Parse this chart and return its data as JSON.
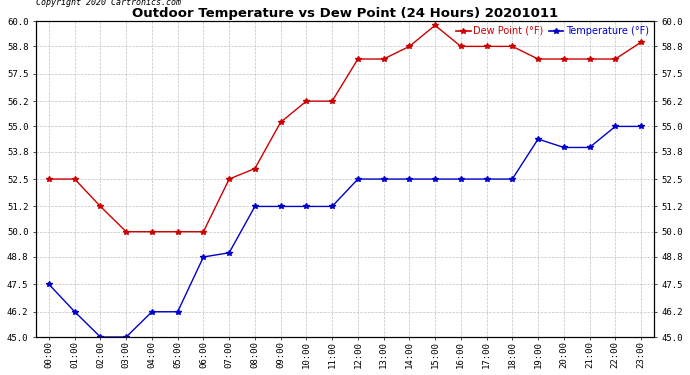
{
  "title": "Outdoor Temperature vs Dew Point (24 Hours) 20201011",
  "copyright": "Copyright 2020 Cartronics.com",
  "hours": [
    "00:00",
    "01:00",
    "02:00",
    "03:00",
    "04:00",
    "05:00",
    "06:00",
    "07:00",
    "08:00",
    "09:00",
    "10:00",
    "11:00",
    "12:00",
    "13:00",
    "14:00",
    "15:00",
    "16:00",
    "17:00",
    "18:00",
    "19:00",
    "20:00",
    "21:00",
    "22:00",
    "23:00"
  ],
  "temperature": [
    47.5,
    46.2,
    45.0,
    45.0,
    46.2,
    46.2,
    48.8,
    49.0,
    51.2,
    51.2,
    51.2,
    51.2,
    52.5,
    52.5,
    52.5,
    52.5,
    52.5,
    52.5,
    52.5,
    54.4,
    54.0,
    54.0,
    55.0,
    55.0
  ],
  "dew_point": [
    52.5,
    52.5,
    51.2,
    50.0,
    50.0,
    50.0,
    50.0,
    52.5,
    53.0,
    55.2,
    56.2,
    56.2,
    58.2,
    58.2,
    58.8,
    59.8,
    58.8,
    58.8,
    58.8,
    58.2,
    58.2,
    58.2,
    58.2,
    59.0
  ],
  "temp_color": "#0000cc",
  "dew_color": "#cc0000",
  "ylim_min": 45.0,
  "ylim_max": 60.0,
  "yticks": [
    45.0,
    46.2,
    47.5,
    48.8,
    50.0,
    51.2,
    52.5,
    53.8,
    55.0,
    56.2,
    57.5,
    58.8,
    60.0
  ],
  "background_color": "#ffffff",
  "grid_color": "#bbbbbb",
  "legend_dew": "Dew Point (°F)",
  "legend_temp": "Temperature (°F)"
}
